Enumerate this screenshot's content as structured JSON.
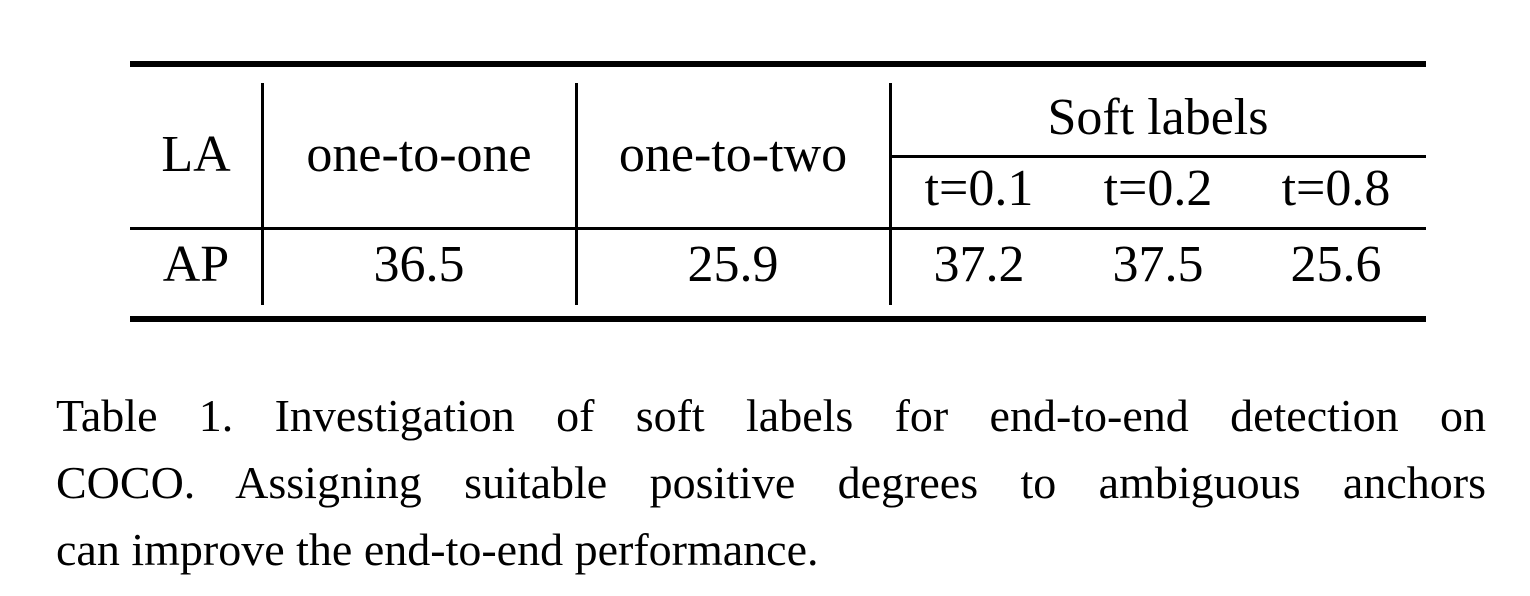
{
  "table": {
    "header": {
      "row_label": "LA",
      "col_one_to_one": "one-to-one",
      "col_one_to_two": "one-to-two",
      "group_soft_labels": "Soft labels",
      "soft_cols": [
        "t=0.1",
        "t=0.2",
        "t=0.8"
      ]
    },
    "row": {
      "label": "AP",
      "one_to_one": "36.5",
      "one_to_two": "25.9",
      "soft_values": [
        "37.2",
        "37.5",
        "25.6"
      ]
    }
  },
  "caption": {
    "line1": "Table 1.  Investigation of soft labels for end-to-end detection on",
    "line2": "COCO. Assigning suitable positive degrees to ambiguous anchors",
    "line3": "can improve the end-to-end performance."
  }
}
